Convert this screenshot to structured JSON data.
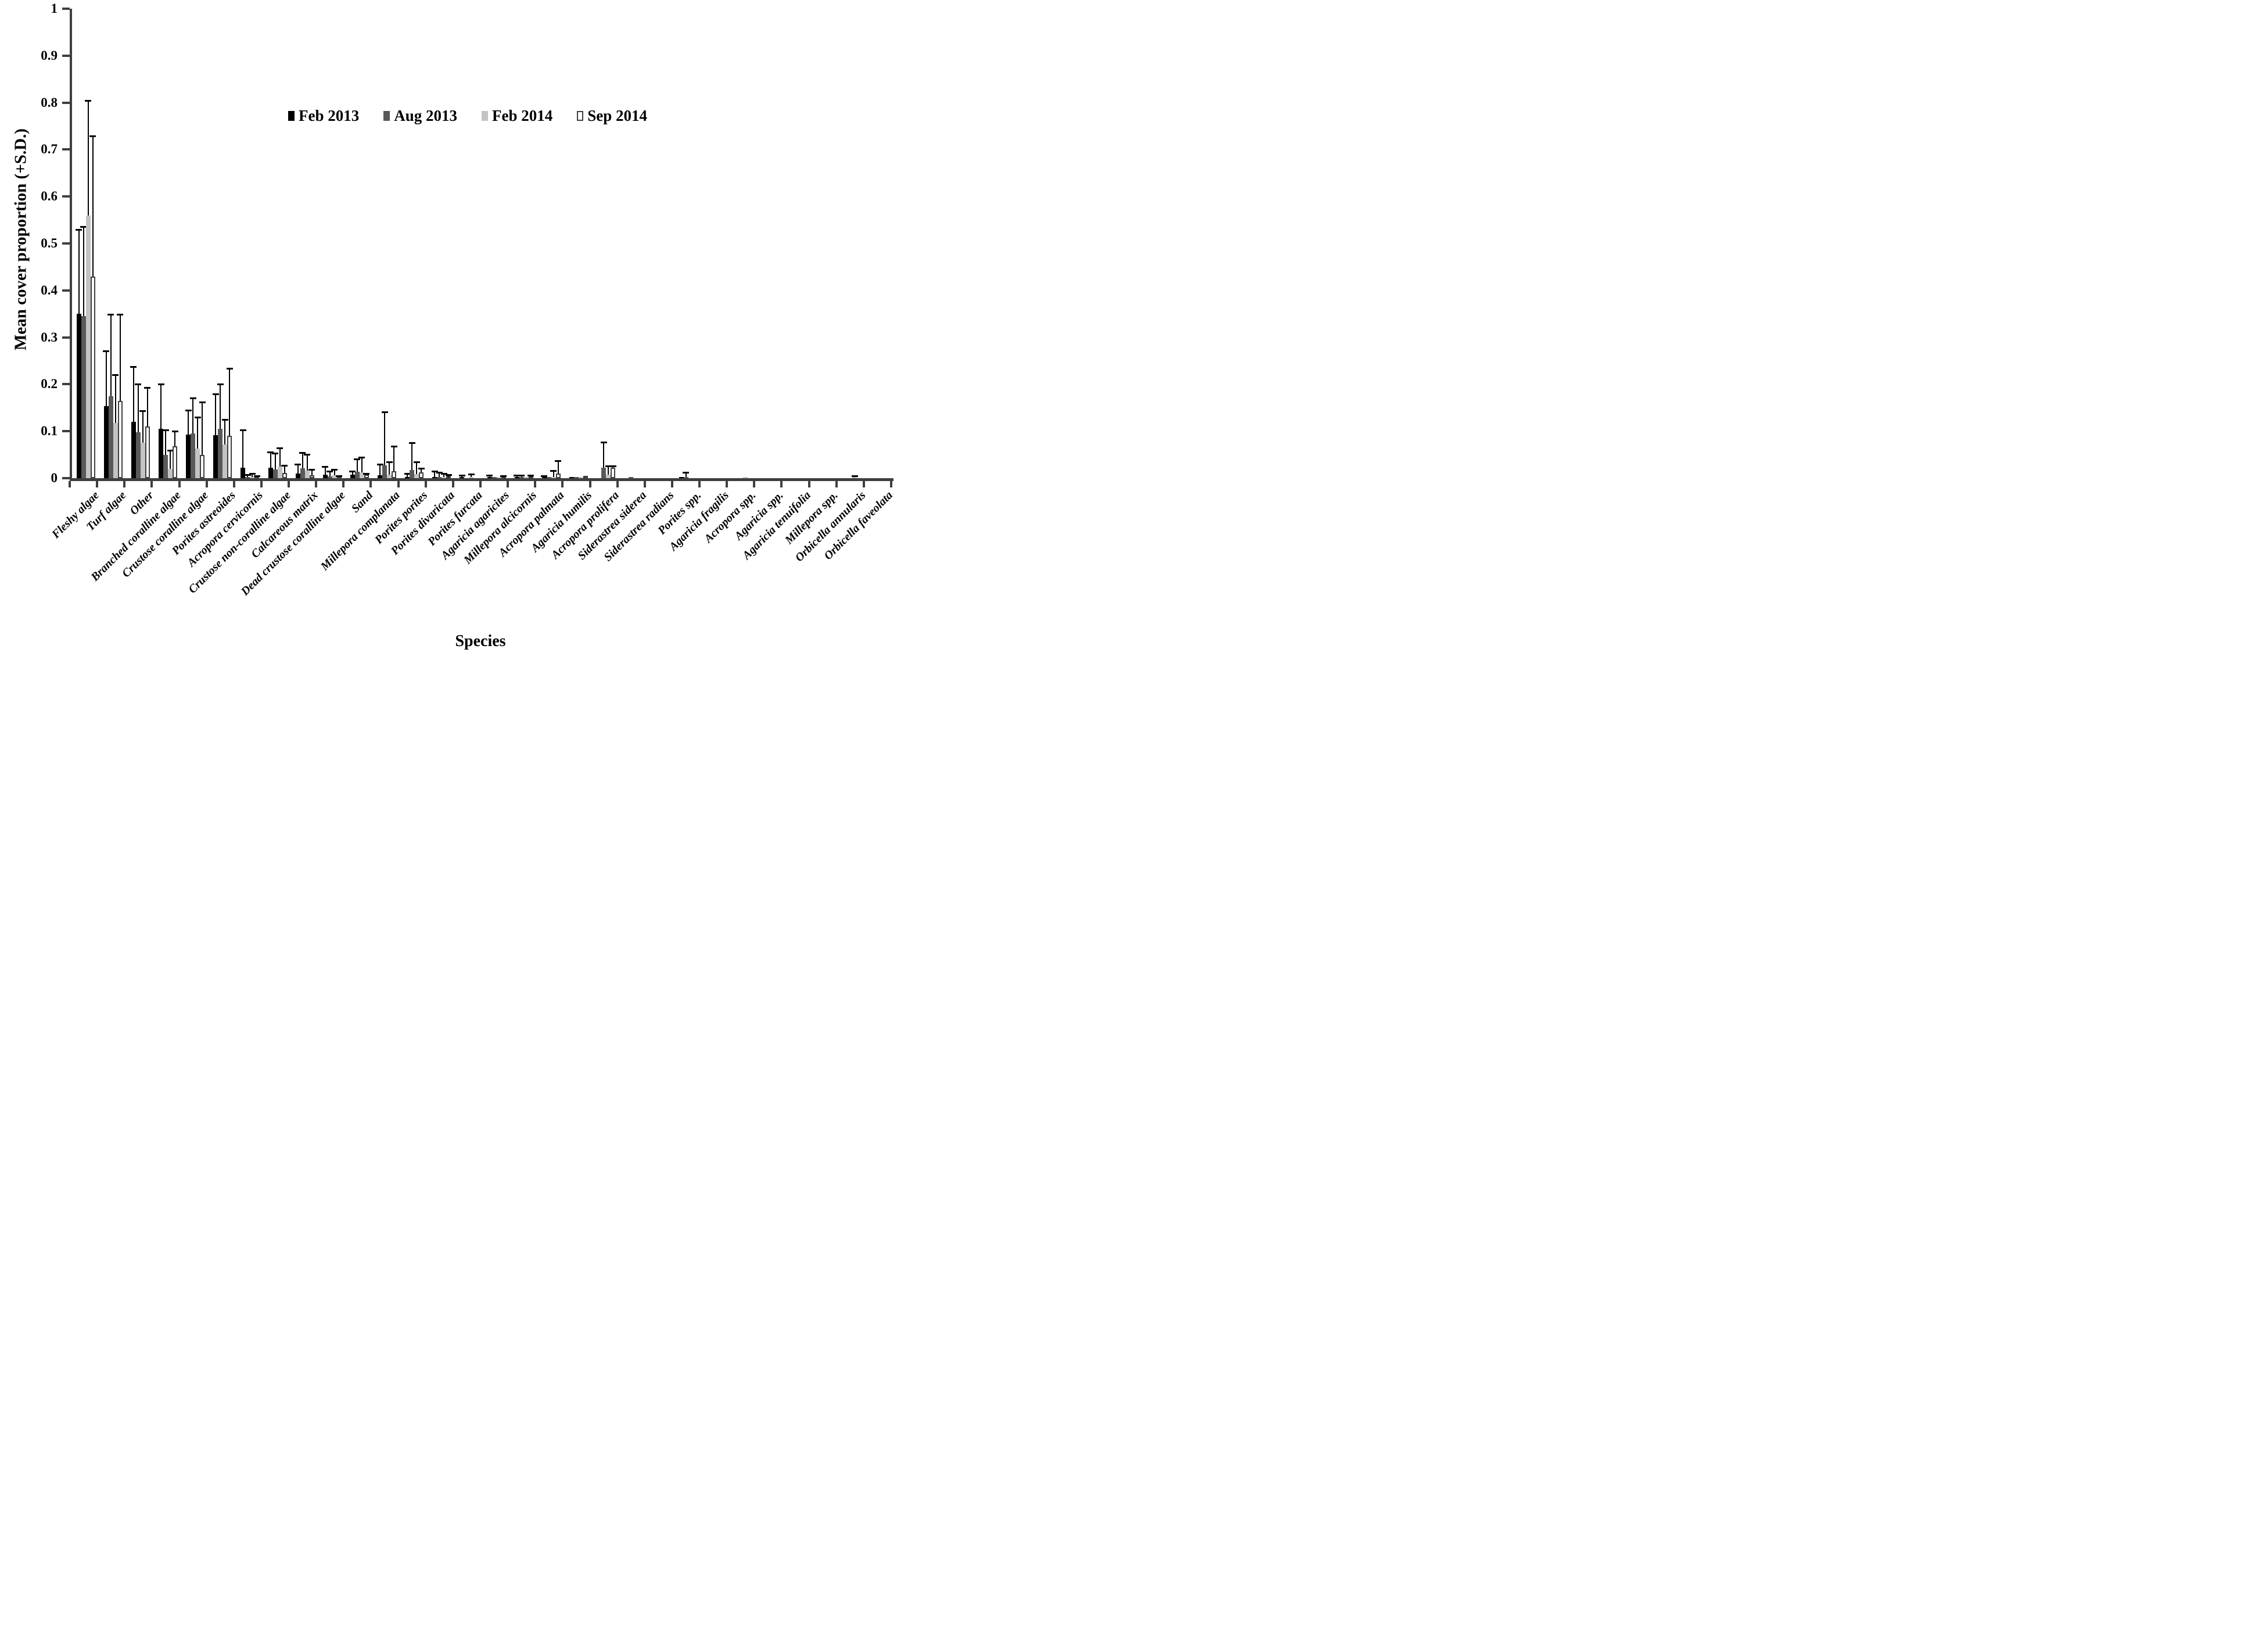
{
  "figure": {
    "x_title": "Species",
    "y_title": "Mean cover proportion (+S.D.)"
  },
  "chart_data": {
    "type": "bar",
    "title": "",
    "xlabel": "Species",
    "ylabel": "Mean cover proportion (+S.D.)",
    "ylim": [
      0,
      1
    ],
    "y_tick_step": 0.1,
    "y_tick_labels": [
      "1",
      "0.9",
      "0.8",
      "0.7",
      "0.6",
      "0.5",
      "0.4",
      "0.3",
      "0.2",
      "0.1",
      "0"
    ],
    "grid": false,
    "legend_position": "top-center",
    "error_bars": "+S.D. upward only, cap on top",
    "axis_color": "#3f3f3f",
    "categories": [
      "Fleshy algae",
      "Turf algae",
      "Other",
      "Branched coralline algae",
      "Crustose coralline algae",
      "Porites astreoides",
      "Acropora cervicornis",
      "Crustose non-coralline algae",
      "Calcareous matrix",
      "Dead crustose coralline algae",
      "Sand",
      "Millepora complanata",
      "Porites porites",
      "Porites divaricata",
      "Porites furcata",
      "Agaricia agaricites",
      "Millepora alcicornis",
      "Acropora palmata",
      "Agaricia humilis",
      "Acropora prolifera",
      "Siderastrea siderea",
      "Siderastrea radians",
      "Porites spp.",
      "Agaricia fragilis",
      "Acropora spp.",
      "Agaricia spp.",
      "Agaricia tenuifolia",
      "Millepora spp.",
      "Orbicella annularis",
      "Orbicella faveolata"
    ],
    "series": [
      {
        "name": "Feb 2013",
        "color": "#000000",
        "values": [
          0.35,
          0.153,
          0.12,
          0.105,
          0.093,
          0.092,
          0.022,
          0.022,
          0.01,
          0.007,
          0.007,
          0.006,
          0.003,
          0.002,
          0.001,
          0.001,
          0.002,
          0.001,
          0.002,
          0,
          0,
          0,
          0.001,
          0,
          0,
          0,
          0,
          0,
          0,
          0
        ],
        "sd": [
          0.18,
          0.118,
          0.118,
          0.095,
          0.052,
          0.088,
          0.081,
          0.033,
          0.02,
          0.017,
          0.008,
          0.024,
          0.008,
          0.012,
          0.004,
          0.004,
          0.004,
          0.003,
          0,
          0,
          0,
          0,
          0,
          0,
          0,
          0,
          0,
          0,
          0,
          0
        ]
      },
      {
        "name": "Aug 2013",
        "color": "#595959",
        "values": [
          0.345,
          0.175,
          0.098,
          0.05,
          0.095,
          0.105,
          0.003,
          0.018,
          0.021,
          0.004,
          0.014,
          0.027,
          0.017,
          0.002,
          0,
          0.001,
          0.002,
          0.001,
          0.002,
          0.022,
          0.002,
          0,
          0.001,
          0,
          0,
          0,
          0,
          0,
          0,
          0
        ],
        "sd": [
          0.19,
          0.175,
          0.103,
          0.053,
          0.076,
          0.095,
          0.005,
          0.035,
          0.034,
          0.011,
          0.027,
          0.114,
          0.058,
          0.01,
          0,
          0,
          0.004,
          0,
          0,
          0.055,
          0,
          0,
          0.01,
          0,
          0,
          0,
          0,
          0,
          0,
          0
        ]
      },
      {
        "name": "Feb 2014",
        "color": "#c3c3c3",
        "values": [
          0.56,
          0.117,
          0.075,
          0.02,
          0.063,
          0.072,
          0.001,
          0.025,
          0.016,
          0.006,
          0.012,
          0.008,
          0.009,
          0.002,
          0.002,
          0.001,
          0.001,
          0.003,
          0.001,
          0.008,
          0,
          0,
          0,
          0,
          0.002,
          0,
          0,
          0,
          0.002,
          0
        ],
        "sd": [
          0.245,
          0.103,
          0.068,
          0.04,
          0.067,
          0.053,
          0.007,
          0.04,
          0.035,
          0.012,
          0.032,
          0.027,
          0.026,
          0.007,
          0.006,
          0,
          0,
          0.013,
          0,
          0.018,
          0,
          0,
          0,
          0,
          0,
          0,
          0,
          0,
          0.002,
          0
        ]
      },
      {
        "name": "Sep 2014",
        "color": "#ffffff",
        "border": "#3f3f3f",
        "values": [
          0.43,
          0.165,
          0.11,
          0.068,
          0.05,
          0.09,
          0.001,
          0.011,
          0.006,
          0.003,
          0.007,
          0.015,
          0.012,
          0.001,
          0,
          0.002,
          0.001,
          0.01,
          0.001,
          0.022,
          0,
          0,
          0,
          0,
          0,
          0,
          0,
          0,
          0,
          0
        ],
        "sd": [
          0.3,
          0.185,
          0.083,
          0.032,
          0.113,
          0.143,
          0.001,
          0.016,
          0.012,
          0.002,
          0.001,
          0.053,
          0.009,
          0.005,
          0,
          0.002,
          0.004,
          0.027,
          0,
          0.004,
          0,
          0,
          0,
          0,
          0,
          0,
          0,
          0,
          0,
          0
        ]
      }
    ]
  }
}
